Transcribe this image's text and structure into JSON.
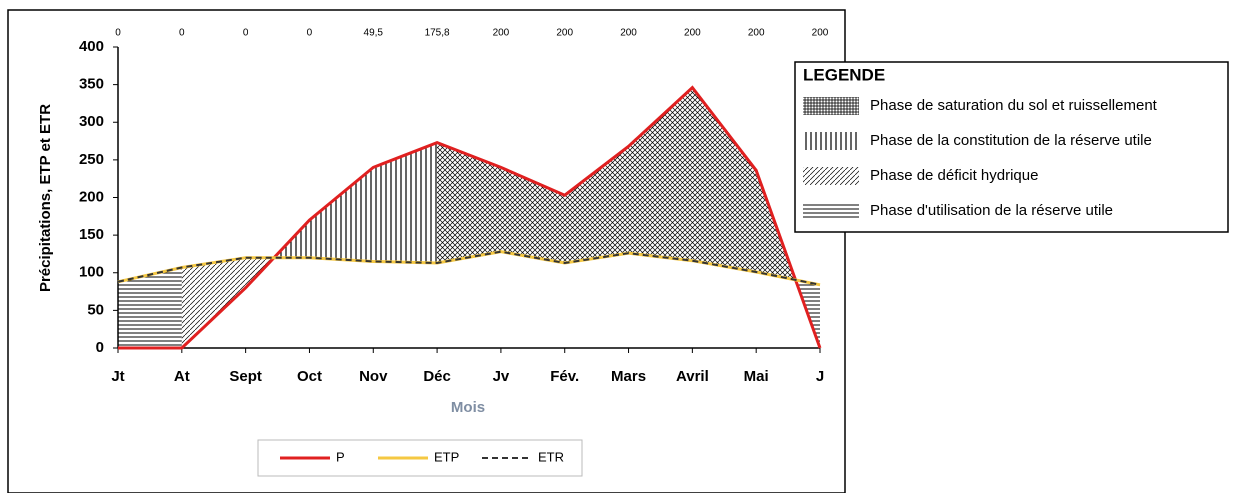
{
  "chart_data": {
    "type": "line",
    "y_label": "Précipitations, ETP et ETR",
    "x_label": "Mois",
    "categories": [
      "Jt",
      "At",
      "Sept",
      "Oct",
      "Nov",
      "Déc",
      "Jv",
      "Fév.",
      "Mars",
      "Avril",
      "Mai",
      "J"
    ],
    "series": [
      {
        "name": "P",
        "color": "#e02020",
        "values": [
          0,
          0,
          80,
          170,
          240,
          273,
          240,
          203,
          268,
          346,
          236,
          0
        ]
      },
      {
        "name": "ETP",
        "color": "#f5c842",
        "values": [
          88,
          107,
          120,
          120,
          115,
          113,
          128,
          113,
          126,
          116,
          101,
          84
        ]
      },
      {
        "name": "ETR",
        "color": "#333333",
        "dashed": true,
        "values": [
          88,
          107,
          120,
          120,
          115,
          113,
          128,
          113,
          126,
          116,
          101,
          84
        ]
      }
    ],
    "reserve": {
      "values": [
        0,
        0,
        0,
        0,
        49.5,
        175.8,
        200,
        200,
        200,
        200,
        200,
        200
      ],
      "value_labels": [
        "0",
        "0",
        "0",
        "0",
        "49,5",
        "175,8",
        "200",
        "200",
        "200",
        "200",
        "200",
        "200"
      ]
    },
    "ylim": [
      0,
      400
    ],
    "yticks": [
      0,
      50,
      100,
      150,
      200,
      250,
      300,
      350,
      400
    ],
    "phase_legend": {
      "title": "LEGENDE",
      "items": [
        "Phase de saturation du sol et ruissellement",
        "Phase de la constitution de la réserve utile",
        "Phase de déficit hydrique",
        "Phase d'utilisation de la réserve utile"
      ]
    }
  }
}
